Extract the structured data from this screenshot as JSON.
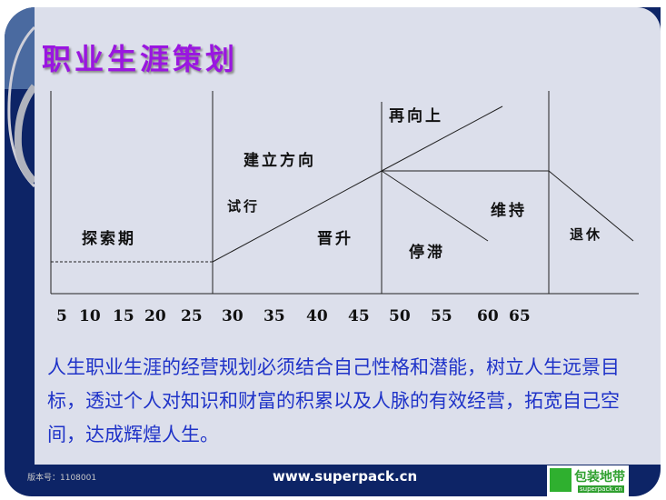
{
  "title": "职业生涯策划",
  "diagram": {
    "labels": {
      "explore": "探索期",
      "establish": "建立方向",
      "trial": "试行",
      "promote": "晋升",
      "up_again": "再向上",
      "stagnate": "停滞",
      "maintain": "维持",
      "retire": "退休"
    },
    "ages": [
      "5",
      "10",
      "15",
      "20",
      "25",
      "30",
      "35",
      "40",
      "45",
      "50",
      "55",
      "60",
      "65"
    ]
  },
  "paragraph": "人生职业生涯的经营规划必须结合自己性格和潜能，树立人生远景目标，透过个人对知识和财富的积累以及人脉的有效经营，拓宽自己空间，达成辉煌人生。",
  "footer": {
    "version": "版本号：1108001",
    "url": "www.superpack.cn",
    "logo_text": "包装地带",
    "logo_sub": "superpack.cn"
  }
}
